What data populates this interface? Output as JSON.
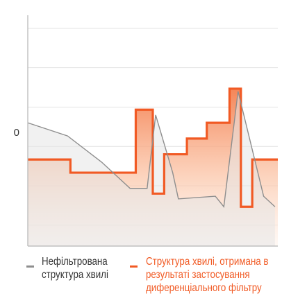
{
  "chart_data": {
    "type": "area",
    "zero_label": "0",
    "grid": true,
    "legend_position": "bottom",
    "series": [
      {
        "name": "Нефільтрована структура хвилі",
        "color": "#8e8e8e",
        "fill": "#e6e6e6",
        "x": [
          0,
          1.4,
          2.6,
          3.6,
          4.2,
          4.5,
          5.1,
          5.3,
          6.6,
          6.9,
          7.4,
          8.3,
          8.7
        ],
        "y": [
          0.9,
          0.4,
          -0.6,
          -1.6,
          -1.6,
          1.2,
          -1.0,
          -2.0,
          -1.9,
          -2.3,
          2.1,
          -1.9,
          -2.3
        ]
      },
      {
        "name": "Структура хвилі, отримана в результаті застосування диференціального фільтру",
        "color": "#f15a24",
        "fill": "#f7a07a",
        "x": [
          0,
          1.5,
          1.5,
          3.8,
          3.8,
          4.4,
          4.4,
          4.8,
          4.8,
          5.6,
          5.6,
          6.3,
          6.3,
          7.1,
          7.1,
          7.5,
          7.5,
          7.9,
          7.9,
          8.8
        ],
        "y": [
          -0.5,
          -0.5,
          -1.0,
          -1.0,
          1.4,
          1.4,
          -1.8,
          -1.8,
          -0.3,
          -0.3,
          0.3,
          0.3,
          0.9,
          0.9,
          2.2,
          2.2,
          -2.3,
          -2.3,
          -0.5,
          -0.5
        ]
      }
    ],
    "xlim": [
      0,
      8.8
    ],
    "ylim": [
      -3.8,
      5.0
    ]
  }
}
